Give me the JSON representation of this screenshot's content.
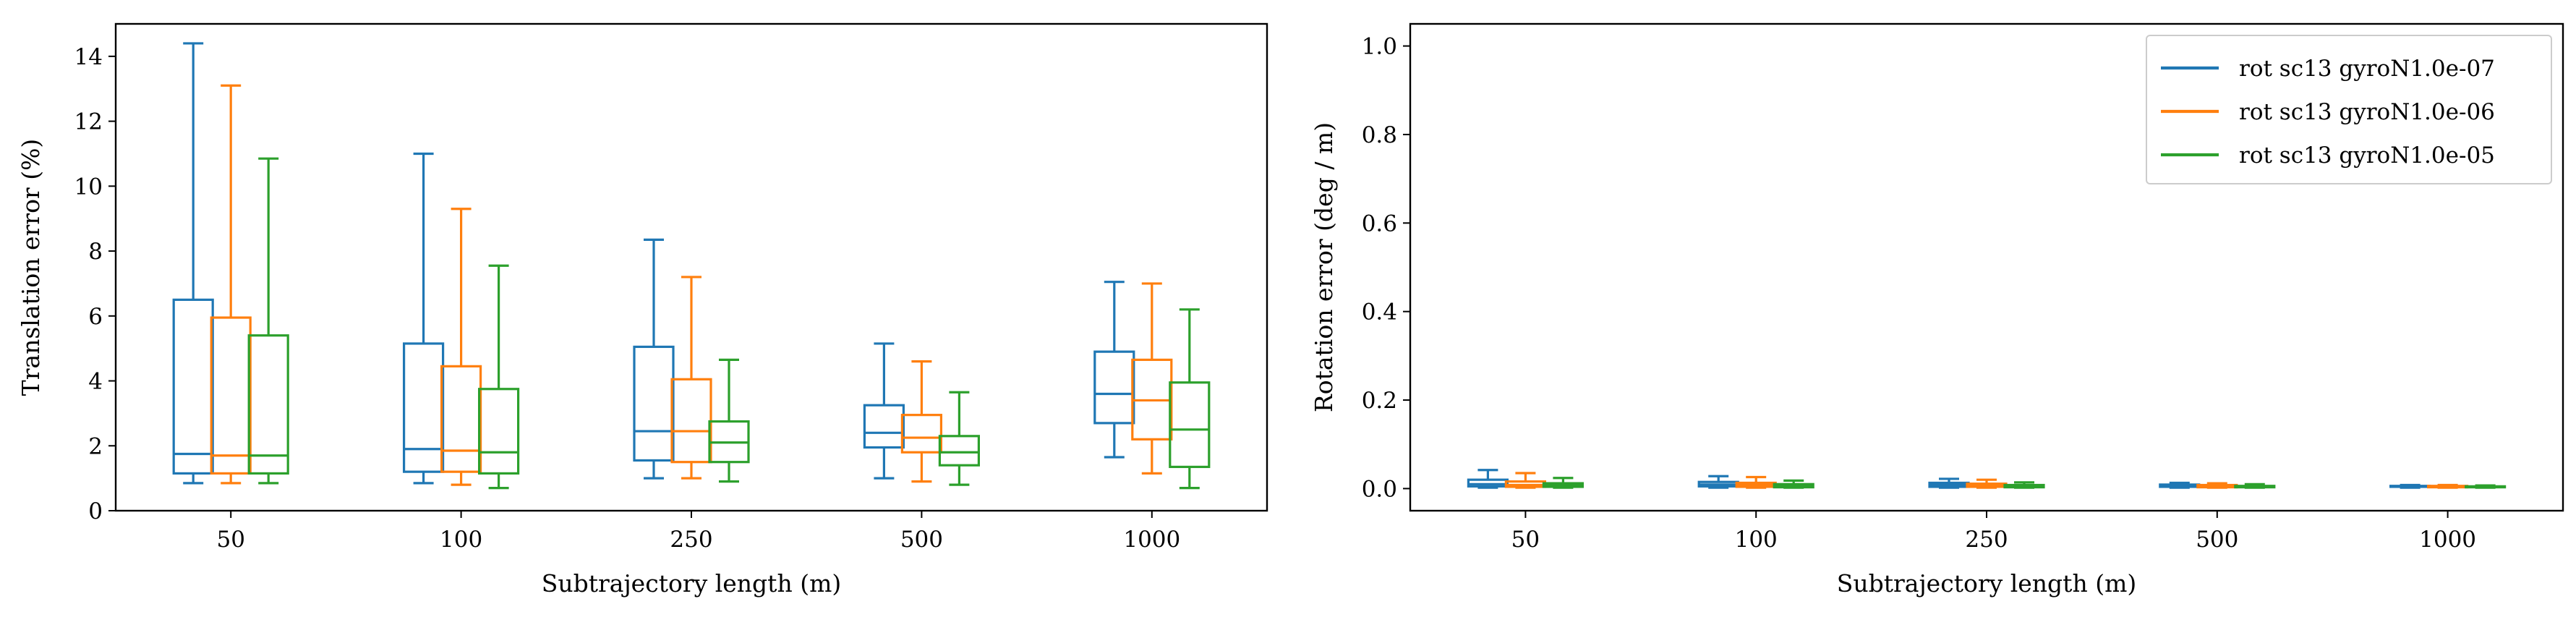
{
  "chart_data": [
    {
      "type": "box",
      "xlabel": "Subtrajectory length (m)",
      "ylabel": "Translation error (%)",
      "categories": [
        "50",
        "100",
        "250",
        "500",
        "1000"
      ],
      "ylim": [
        0,
        15
      ],
      "yticks": [
        0,
        2,
        4,
        6,
        8,
        10,
        12,
        14
      ],
      "ytick_labels": [
        "0",
        "2",
        "4",
        "6",
        "8",
        "10",
        "12",
        "14"
      ],
      "grid": false,
      "legend": false,
      "series": [
        {
          "name": "rot sc13 gyroN1.0e-07",
          "color": "#1f77b4",
          "boxes": [
            {
              "whislo": 0.85,
              "q1": 1.15,
              "med": 1.75,
              "q3": 6.5,
              "whishi": 14.4
            },
            {
              "whislo": 0.85,
              "q1": 1.2,
              "med": 1.9,
              "q3": 5.15,
              "whishi": 11.0
            },
            {
              "whislo": 1.0,
              "q1": 1.55,
              "med": 2.45,
              "q3": 5.05,
              "whishi": 8.35
            },
            {
              "whislo": 1.0,
              "q1": 1.95,
              "med": 2.4,
              "q3": 3.25,
              "whishi": 5.15
            },
            {
              "whislo": 1.65,
              "q1": 2.7,
              "med": 3.6,
              "q3": 4.9,
              "whishi": 7.05
            }
          ]
        },
        {
          "name": "rot sc13 gyroN1.0e-06",
          "color": "#ff7f0e",
          "boxes": [
            {
              "whislo": 0.85,
              "q1": 1.15,
              "med": 1.7,
              "q3": 5.95,
              "whishi": 13.1
            },
            {
              "whislo": 0.8,
              "q1": 1.2,
              "med": 1.85,
              "q3": 4.45,
              "whishi": 9.3
            },
            {
              "whislo": 1.0,
              "q1": 1.5,
              "med": 2.45,
              "q3": 4.05,
              "whishi": 7.2
            },
            {
              "whislo": 0.9,
              "q1": 1.8,
              "med": 2.25,
              "q3": 2.95,
              "whishi": 4.6
            },
            {
              "whislo": 1.15,
              "q1": 2.2,
              "med": 3.4,
              "q3": 4.65,
              "whishi": 7.0
            }
          ]
        },
        {
          "name": "rot sc13 gyroN1.0e-05",
          "color": "#2ca02c",
          "boxes": [
            {
              "whislo": 0.85,
              "q1": 1.15,
              "med": 1.7,
              "q3": 5.4,
              "whishi": 10.85
            },
            {
              "whislo": 0.7,
              "q1": 1.15,
              "med": 1.8,
              "q3": 3.75,
              "whishi": 7.55
            },
            {
              "whislo": 0.9,
              "q1": 1.5,
              "med": 2.1,
              "q3": 2.75,
              "whishi": 4.65
            },
            {
              "whislo": 0.8,
              "q1": 1.4,
              "med": 1.8,
              "q3": 2.3,
              "whishi": 3.65
            },
            {
              "whislo": 0.7,
              "q1": 1.35,
              "med": 2.5,
              "q3": 3.95,
              "whishi": 6.2
            }
          ]
        }
      ]
    },
    {
      "type": "box",
      "xlabel": "Subtrajectory length (m)",
      "ylabel": "Rotation error (deg / m)",
      "categories": [
        "50",
        "100",
        "250",
        "500",
        "1000"
      ],
      "ylim": [
        -0.05,
        1.05
      ],
      "yticks": [
        0.0,
        0.2,
        0.4,
        0.6,
        0.8,
        1.0
      ],
      "ytick_labels": [
        "0.0",
        "0.2",
        "0.4",
        "0.6",
        "0.8",
        "1.0"
      ],
      "grid": false,
      "legend": "top-right",
      "series": [
        {
          "name": "rot sc13 gyroN1.0e-07",
          "color": "#1f77b4",
          "boxes": [
            {
              "whislo": 0.002,
              "q1": 0.005,
              "med": 0.01,
              "q3": 0.02,
              "whishi": 0.042
            },
            {
              "whislo": 0.002,
              "q1": 0.005,
              "med": 0.009,
              "q3": 0.015,
              "whishi": 0.028
            },
            {
              "whislo": 0.002,
              "q1": 0.004,
              "med": 0.008,
              "q3": 0.013,
              "whishi": 0.022
            },
            {
              "whislo": 0.002,
              "q1": 0.004,
              "med": 0.006,
              "q3": 0.009,
              "whishi": 0.013
            },
            {
              "whislo": 0.002,
              "q1": 0.004,
              "med": 0.005,
              "q3": 0.006,
              "whishi": 0.008
            }
          ]
        },
        {
          "name": "rot sc13 gyroN1.0e-06",
          "color": "#ff7f0e",
          "boxes": [
            {
              "whislo": 0.002,
              "q1": 0.004,
              "med": 0.008,
              "q3": 0.016,
              "whishi": 0.035
            },
            {
              "whislo": 0.002,
              "q1": 0.004,
              "med": 0.008,
              "q3": 0.013,
              "whishi": 0.026
            },
            {
              "whislo": 0.002,
              "q1": 0.004,
              "med": 0.007,
              "q3": 0.011,
              "whishi": 0.02
            },
            {
              "whislo": 0.002,
              "q1": 0.003,
              "med": 0.005,
              "q3": 0.008,
              "whishi": 0.012
            },
            {
              "whislo": 0.002,
              "q1": 0.003,
              "med": 0.004,
              "q3": 0.006,
              "whishi": 0.008
            }
          ]
        },
        {
          "name": "rot sc13 gyroN1.0e-05",
          "color": "#2ca02c",
          "boxes": [
            {
              "whislo": 0.002,
              "q1": 0.004,
              "med": 0.007,
              "q3": 0.012,
              "whishi": 0.024
            },
            {
              "whislo": 0.002,
              "q1": 0.003,
              "med": 0.006,
              "q3": 0.01,
              "whishi": 0.018
            },
            {
              "whislo": 0.002,
              "q1": 0.003,
              "med": 0.005,
              "q3": 0.008,
              "whishi": 0.014
            },
            {
              "whislo": 0.002,
              "q1": 0.003,
              "med": 0.004,
              "q3": 0.006,
              "whishi": 0.01
            },
            {
              "whislo": 0.002,
              "q1": 0.003,
              "med": 0.004,
              "q3": 0.005,
              "whishi": 0.007
            }
          ]
        }
      ]
    }
  ]
}
